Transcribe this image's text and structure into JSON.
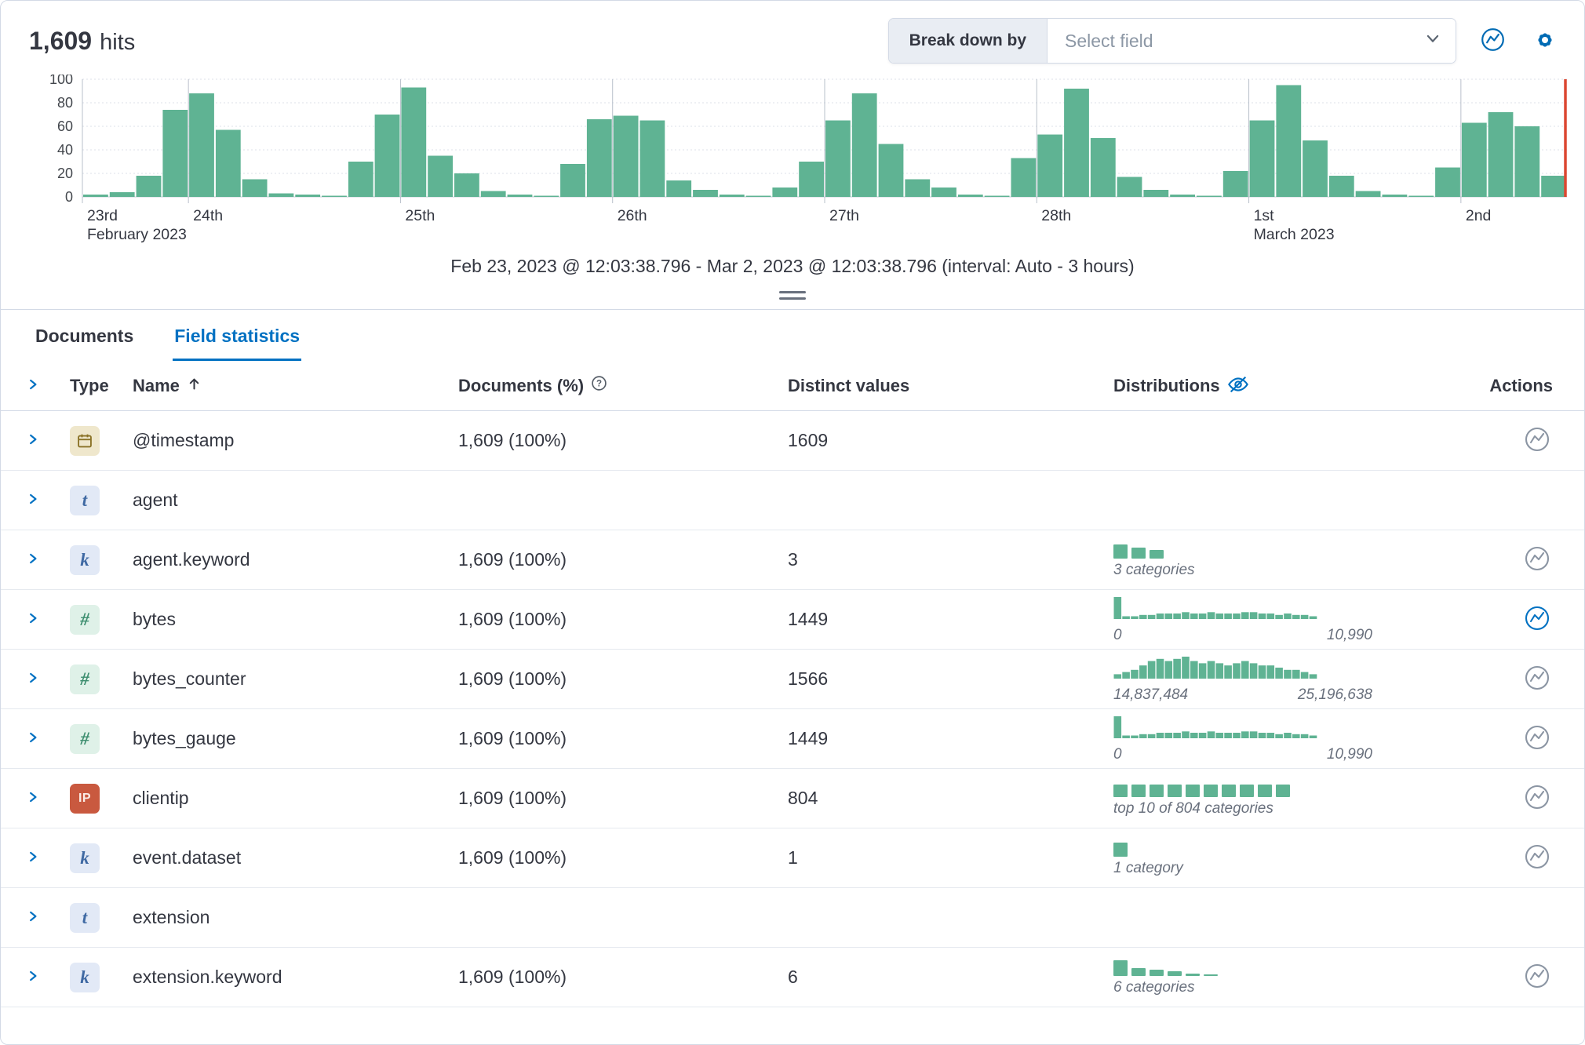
{
  "header": {
    "hits_value": "1,609",
    "hits_label": "hits",
    "breakdown_label": "Break down by",
    "breakdown_placeholder": "Select field"
  },
  "colors": {
    "bar": "#5FB393",
    "accent": "#0071C2",
    "marker": "#DC4731"
  },
  "chart_data": {
    "type": "bar",
    "ylim": [
      0,
      100
    ],
    "y_ticks": [
      0,
      20,
      40,
      60,
      80,
      100
    ],
    "bars": [
      2,
      4,
      18,
      74,
      88,
      57,
      15,
      3,
      2,
      1,
      30,
      70,
      93,
      35,
      20,
      5,
      2,
      1,
      28,
      66,
      69,
      65,
      14,
      6,
      2,
      1,
      8,
      30,
      65,
      88,
      45,
      15,
      8,
      2,
      1,
      33,
      53,
      92,
      50,
      17,
      6,
      2,
      1,
      22,
      65,
      95,
      48,
      18,
      5,
      2,
      1,
      25,
      63,
      72,
      60,
      18
    ],
    "day_ticks": [
      {
        "index": 0,
        "label": "23rd",
        "sublabel": "February 2023"
      },
      {
        "index": 4,
        "label": "24th"
      },
      {
        "index": 12,
        "label": "25th"
      },
      {
        "index": 20,
        "label": "26th"
      },
      {
        "index": 28,
        "label": "27th"
      },
      {
        "index": 36,
        "label": "28th"
      },
      {
        "index": 44,
        "label": "1st",
        "sublabel": "March 2023"
      },
      {
        "index": 52,
        "label": "2nd"
      }
    ],
    "range_label": "Feb 23, 2023 @ 12:03:38.796 - Mar 2, 2023 @ 12:03:38.796 (interval: Auto - 3 hours)"
  },
  "tabs": [
    {
      "label": "Documents",
      "active": false
    },
    {
      "label": "Field statistics",
      "active": true
    }
  ],
  "table": {
    "headers": {
      "type": "Type",
      "name": "Name",
      "documents": "Documents (%)",
      "distinct": "Distinct values",
      "distributions": "Distributions",
      "actions": "Actions"
    },
    "type_glyphs": {
      "text": "t",
      "keyword": "k",
      "number": "#",
      "ip": "IP",
      "date": "calendar"
    },
    "rows": [
      {
        "type": "date",
        "name": "@timestamp",
        "documents": "1,609 (100%)",
        "distinct": "1609",
        "distribution": null,
        "has_action": true,
        "action_active": false
      },
      {
        "type": "text",
        "name": "agent",
        "documents": "",
        "distinct": "",
        "distribution": null,
        "has_action": false,
        "action_active": false
      },
      {
        "type": "keyword",
        "name": "agent.keyword",
        "documents": "1,609 (100%)",
        "distinct": "3",
        "distribution": {
          "kind": "category",
          "bars": [
            18,
            14,
            11
          ],
          "label": "3 categories"
        },
        "has_action": true,
        "action_active": false
      },
      {
        "type": "number",
        "name": "bytes",
        "documents": "1,609 (100%)",
        "distinct": "1449",
        "distribution": {
          "kind": "numeric",
          "values": [
            16,
            2,
            2,
            3,
            3,
            4,
            4,
            4,
            5,
            4,
            4,
            5,
            4,
            4,
            4,
            5,
            5,
            4,
            4,
            3,
            4,
            3,
            3,
            2
          ],
          "min_label": "0",
          "max_label": "10,990"
        },
        "has_action": true,
        "action_active": true
      },
      {
        "type": "number",
        "name": "bytes_counter",
        "documents": "1,609 (100%)",
        "distinct": "1566",
        "distribution": {
          "kind": "numeric",
          "values": [
            2,
            3,
            4,
            6,
            8,
            9,
            8,
            9,
            10,
            8,
            7,
            8,
            7,
            6,
            7,
            8,
            7,
            6,
            6,
            5,
            4,
            4,
            3,
            2
          ],
          "min_label": "14,837,484",
          "max_label": "25,196,638"
        },
        "has_action": true,
        "action_active": false
      },
      {
        "type": "number",
        "name": "bytes_gauge",
        "documents": "1,609 (100%)",
        "distinct": "1449",
        "distribution": {
          "kind": "numeric",
          "values": [
            16,
            2,
            2,
            3,
            3,
            4,
            4,
            4,
            5,
            4,
            4,
            5,
            4,
            4,
            4,
            5,
            5,
            4,
            4,
            3,
            4,
            3,
            3,
            2
          ],
          "min_label": "0",
          "max_label": "10,990"
        },
        "has_action": true,
        "action_active": false
      },
      {
        "type": "ip",
        "name": "clientip",
        "documents": "1,609 (100%)",
        "distinct": "804",
        "distribution": {
          "kind": "category",
          "bars": [
            16,
            16,
            16,
            16,
            16,
            16,
            16,
            16,
            16,
            16
          ],
          "label": "top 10 of 804 categories"
        },
        "has_action": true,
        "action_active": false
      },
      {
        "type": "keyword",
        "name": "event.dataset",
        "documents": "1,609 (100%)",
        "distinct": "1",
        "distribution": {
          "kind": "category",
          "bars": [
            18
          ],
          "label": "1 category"
        },
        "has_action": true,
        "action_active": false
      },
      {
        "type": "text",
        "name": "extension",
        "documents": "",
        "distinct": "",
        "distribution": null,
        "has_action": false,
        "action_active": false
      },
      {
        "type": "keyword",
        "name": "extension.keyword",
        "documents": "1,609 (100%)",
        "distinct": "6",
        "distribution": {
          "kind": "category",
          "bars": [
            20,
            10,
            8,
            6,
            3,
            2
          ],
          "label": "6 categories"
        },
        "has_action": true,
        "action_active": false
      }
    ]
  }
}
